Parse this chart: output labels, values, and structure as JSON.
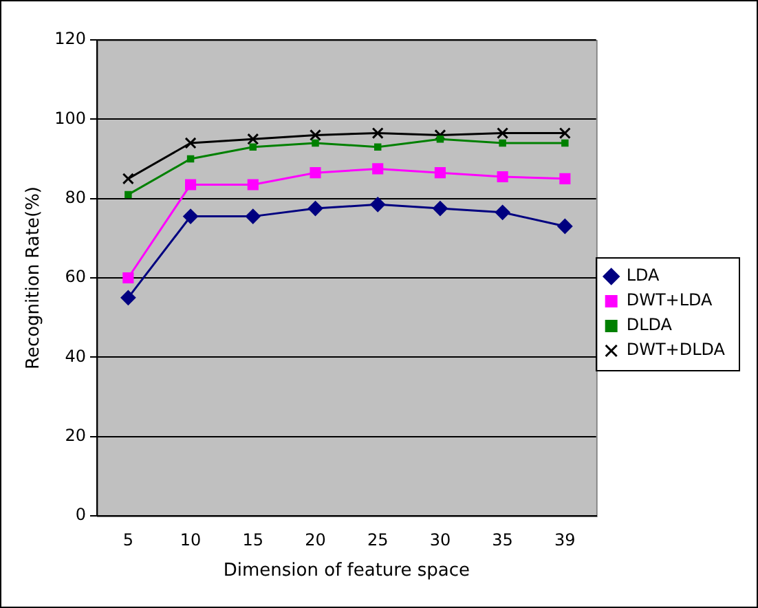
{
  "chart_data": {
    "type": "line",
    "xlabel": "Dimension of feature space",
    "ylabel": "Recognition Rate(%)",
    "categories": [
      "5",
      "10",
      "15",
      "20",
      "25",
      "30",
      "35",
      "39"
    ],
    "series": [
      {
        "name": "LDA",
        "color": "#000080",
        "marker": "diamond",
        "values": [
          55,
          75.5,
          75.5,
          77.5,
          78.5,
          77.5,
          76.5,
          73
        ]
      },
      {
        "name": "DWT+LDA",
        "color": "#ff00ff",
        "marker": "square",
        "values": [
          60,
          83.5,
          83.5,
          86.5,
          87.5,
          86.5,
          85.5,
          85
        ]
      },
      {
        "name": "DLDA",
        "color": "#008000",
        "marker": "square",
        "values": [
          81,
          90,
          93,
          94,
          93,
          95,
          94,
          94
        ]
      },
      {
        "name": "DWT+DLDA",
        "color": "#000000",
        "marker": "cross",
        "values": [
          85,
          94,
          95,
          96,
          96.5,
          96,
          96.5,
          96.5
        ]
      }
    ],
    "ylim": [
      0,
      120
    ],
    "yticks": [
      0,
      20,
      40,
      60,
      80,
      100,
      120
    ],
    "grid": "y",
    "legend": "right"
  }
}
